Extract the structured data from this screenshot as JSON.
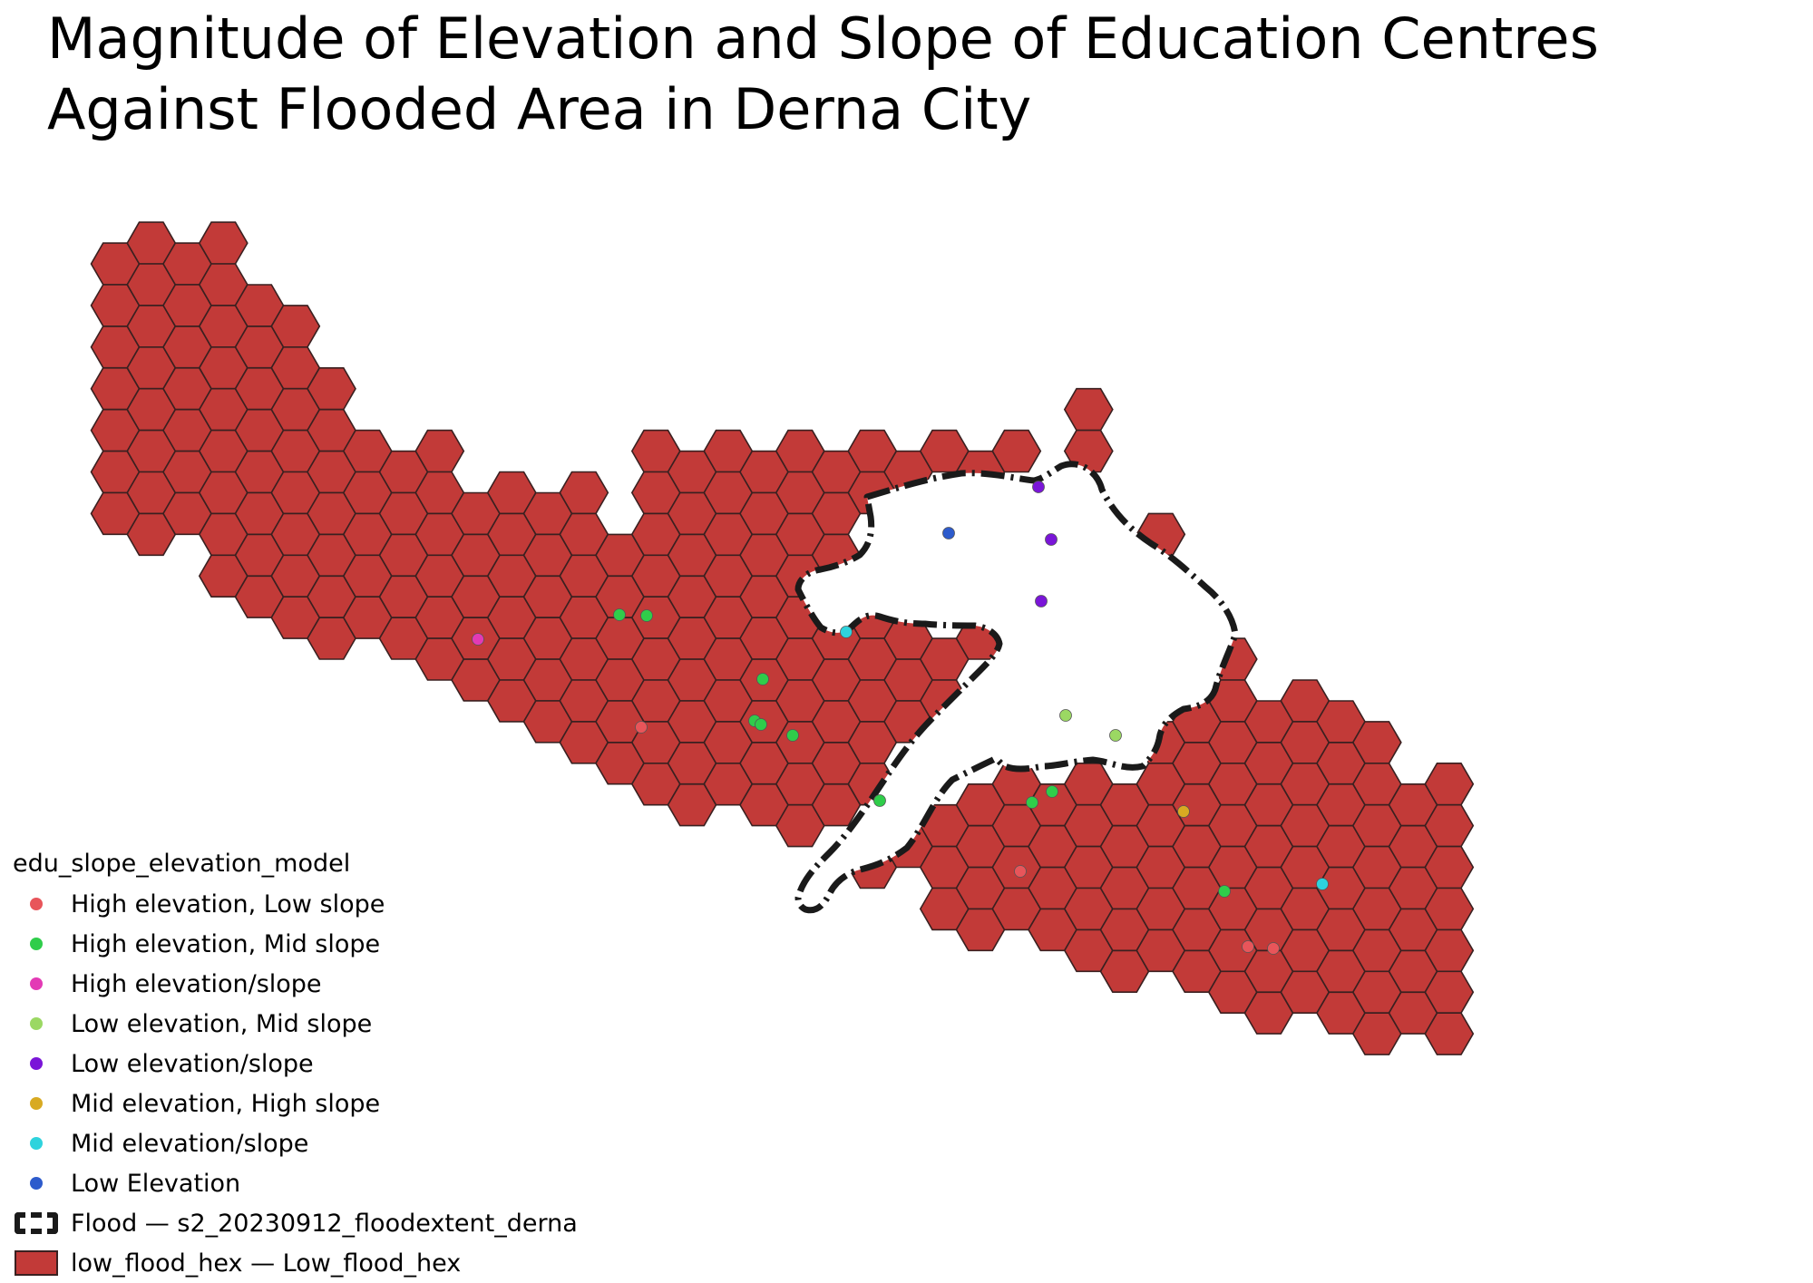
{
  "map": {
    "title_line1": "Magnitude of Elevation and Slope of Education Centres",
    "title_line2": "Against Flooded Area in Derna City"
  },
  "colors": {
    "hex_fill": "#c23a38",
    "hex_stroke": "#3a2020",
    "flood_outline": "#1a1a1a",
    "background": "#ffffff"
  },
  "legend": {
    "title": "edu_slope_elevation_model",
    "categories": [
      {
        "label": "High elevation, Low slope",
        "color": "#e8555a"
      },
      {
        "label": "High elevation, Mid slope",
        "color": "#2fcd4a"
      },
      {
        "label": "High elevation/slope",
        "color": "#e33ab5"
      },
      {
        "label": "Low elevation, Mid slope",
        "color": "#9bd863"
      },
      {
        "label": "Low elevation/slope",
        "color": "#7a15d8"
      },
      {
        "label": "Mid elevation, High slope",
        "color": "#d8aa22"
      },
      {
        "label": "Mid elevation/slope",
        "color": "#2ed3dd"
      },
      {
        "label": "Low Elevation",
        "color": "#2d5bcc"
      }
    ],
    "flood_layer": "Flood — s2_20230912_floodextent_derna",
    "hex_layer": "low_flood_hex — Low_flood_hex"
  },
  "education_centres": [
    {
      "category": "High elevation, Mid slope",
      "count": 12
    },
    {
      "category": "High elevation, Low slope",
      "count": 5
    },
    {
      "category": "Low elevation/slope",
      "count": 3
    },
    {
      "category": "Mid elevation/slope",
      "count": 2
    },
    {
      "category": "Low elevation, Mid slope",
      "count": 2
    },
    {
      "category": "High elevation/slope",
      "count": 1
    },
    {
      "category": "Mid elevation, High slope",
      "count": 1
    },
    {
      "category": "Low Elevation",
      "count": 1
    }
  ]
}
